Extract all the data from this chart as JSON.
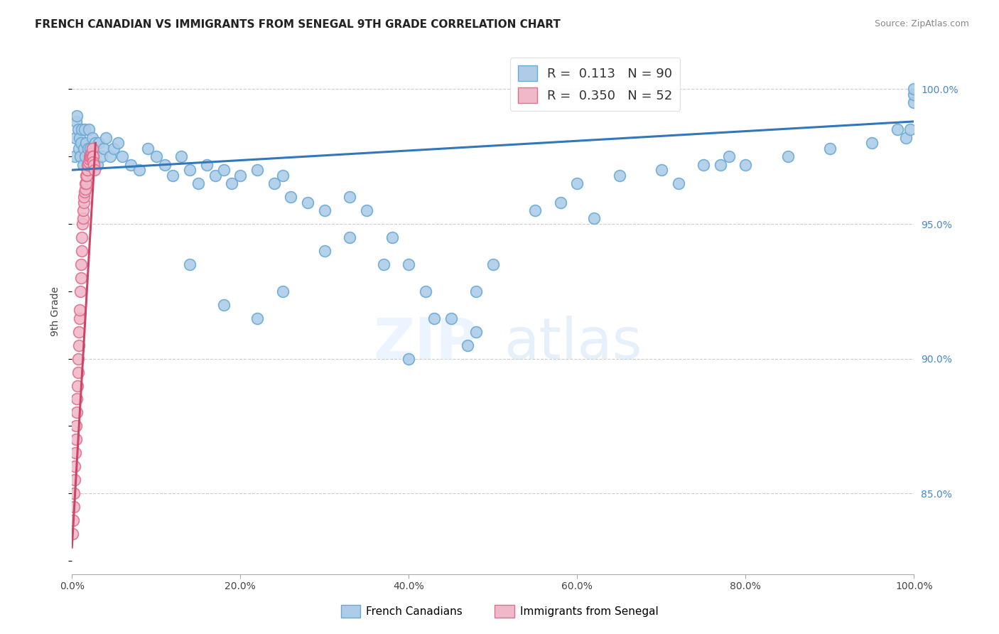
{
  "title": "FRENCH CANADIAN VS IMMIGRANTS FROM SENEGAL 9TH GRADE CORRELATION CHART",
  "source": "Source: ZipAtlas.com",
  "ylabel": "9th Grade",
  "legend_label1": "French Canadians",
  "legend_label2": "Immigrants from Senegal",
  "R1": 0.113,
  "N1": 90,
  "R2": 0.35,
  "N2": 52,
  "color_blue": "#aecce8",
  "color_blue_edge": "#6aaad4",
  "color_blue_line": "#3377bb",
  "color_pink": "#f0b8c8",
  "color_pink_edge": "#e07090",
  "color_pink_line": "#cc4466",
  "blue_x": [
    0.3,
    0.4,
    0.5,
    0.6,
    0.7,
    0.8,
    0.9,
    1.0,
    1.1,
    1.2,
    1.3,
    1.4,
    1.5,
    1.6,
    1.7,
    1.8,
    1.9,
    2.0,
    2.2,
    2.4,
    2.6,
    2.8,
    3.0,
    3.2,
    3.5,
    3.8,
    4.0,
    4.5,
    5.0,
    5.5,
    6.0,
    7.0,
    8.0,
    9.0,
    10.0,
    11.0,
    12.0,
    13.0,
    14.0,
    15.0,
    16.0,
    17.0,
    18.0,
    19.0,
    20.0,
    22.0,
    24.0,
    25.0,
    26.0,
    28.0,
    30.0,
    33.0,
    35.0,
    38.0,
    40.0,
    42.0,
    45.0,
    48.0,
    50.0,
    55.0,
    60.0,
    65.0,
    70.0,
    75.0,
    78.0,
    80.0,
    85.0,
    90.0,
    95.0,
    98.0,
    99.0,
    99.5,
    100.0,
    100.0,
    100.0,
    72.0,
    77.0,
    62.0,
    58.0,
    48.0,
    47.0,
    43.0,
    40.0,
    37.0,
    33.0,
    30.0,
    25.0,
    22.0,
    18.0,
    14.0
  ],
  "blue_y": [
    97.5,
    98.2,
    98.8,
    99.0,
    98.5,
    97.8,
    98.2,
    97.5,
    98.0,
    98.5,
    97.2,
    97.8,
    98.5,
    97.5,
    98.0,
    97.2,
    97.8,
    98.5,
    97.8,
    98.2,
    97.5,
    98.0,
    97.2,
    98.0,
    97.5,
    97.8,
    98.2,
    97.5,
    97.8,
    98.0,
    97.5,
    97.2,
    97.0,
    97.8,
    97.5,
    97.2,
    96.8,
    97.5,
    97.0,
    96.5,
    97.2,
    96.8,
    97.0,
    96.5,
    96.8,
    97.0,
    96.5,
    96.8,
    96.0,
    95.8,
    95.5,
    96.0,
    95.5,
    94.5,
    93.5,
    92.5,
    91.5,
    91.0,
    93.5,
    95.5,
    96.5,
    96.8,
    97.0,
    97.2,
    97.5,
    97.2,
    97.5,
    97.8,
    98.0,
    98.5,
    98.2,
    98.5,
    99.5,
    99.8,
    100.0,
    96.5,
    97.2,
    95.2,
    95.8,
    92.5,
    90.5,
    91.5,
    90.0,
    93.5,
    94.5,
    94.0,
    92.5,
    91.5,
    92.0,
    93.5
  ],
  "pink_x": [
    0.1,
    0.15,
    0.2,
    0.25,
    0.3,
    0.35,
    0.4,
    0.45,
    0.5,
    0.55,
    0.6,
    0.65,
    0.7,
    0.75,
    0.8,
    0.85,
    0.9,
    0.95,
    1.0,
    1.05,
    1.1,
    1.15,
    1.2,
    1.25,
    1.3,
    1.35,
    1.4,
    1.45,
    1.5,
    1.55,
    1.6,
    1.65,
    1.7,
    1.75,
    1.8,
    1.85,
    1.9,
    1.95,
    2.0,
    2.05,
    2.1,
    2.15,
    2.2,
    2.25,
    2.3,
    2.35,
    2.4,
    2.45,
    2.5,
    2.55,
    2.6,
    2.65
  ],
  "pink_y": [
    83.5,
    84.0,
    84.5,
    85.0,
    85.5,
    86.0,
    86.5,
    87.0,
    87.5,
    88.0,
    88.5,
    89.0,
    89.5,
    90.0,
    90.5,
    91.0,
    91.5,
    91.8,
    92.5,
    93.0,
    93.5,
    94.0,
    94.5,
    95.0,
    95.2,
    95.5,
    95.8,
    96.0,
    96.2,
    96.3,
    96.5,
    96.5,
    96.8,
    96.8,
    97.0,
    97.0,
    97.2,
    97.2,
    97.3,
    97.4,
    97.5,
    97.5,
    97.5,
    97.6,
    97.5,
    97.6,
    97.8,
    97.5,
    97.5,
    97.3,
    97.2,
    97.0
  ],
  "blue_trend_x": [
    0,
    100
  ],
  "blue_trend_y": [
    97.0,
    98.8
  ],
  "pink_trend_x": [
    0,
    2.8
  ],
  "pink_trend_y": [
    83.0,
    98.0
  ],
  "xlim": [
    0,
    100
  ],
  "ylim": [
    82.0,
    101.5
  ],
  "xticks": [
    0,
    20,
    40,
    60,
    80,
    100
  ],
  "xticklabels": [
    "0.0%",
    "20.0%",
    "40.0%",
    "60.0%",
    "80.0%",
    "100.0%"
  ],
  "yticks_right": [
    85,
    90,
    95,
    100
  ],
  "yticklabels_right": [
    "85.0%",
    "90.0%",
    "95.0%",
    "100.0%"
  ],
  "grid_color": "#cccccc",
  "bg_color": "#ffffff",
  "title_fontsize": 11,
  "axis_fontsize": 10,
  "legend_fontsize": 13
}
